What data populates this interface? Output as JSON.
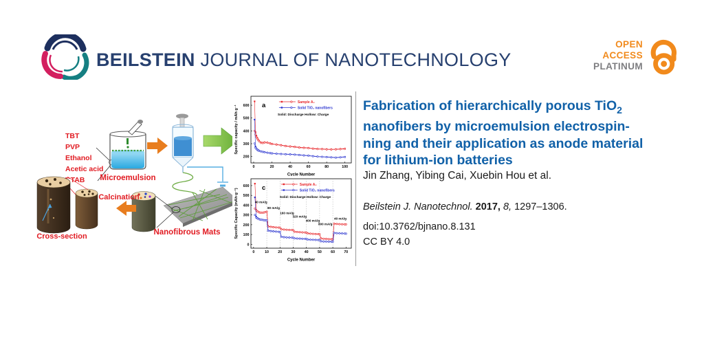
{
  "header": {
    "brand_bold": "BEILSTEIN",
    "brand_rest": "JOURNAL OF NANOTECHNOLOGY",
    "open_access": {
      "line1": "OPEN",
      "line2": "ACCESS",
      "line3": "PLATINUM"
    }
  },
  "article": {
    "title": {
      "l1": "Fabrication of hierarchically porous TiO",
      "l1sub": "2",
      "l2": "nanofibers by microemulsion electrospin-",
      "l3": "ning and their application as anode material",
      "l4": "for lithium-ion batteries"
    },
    "authors": "Jin Zhang, Yibing Cai, Xuebin Hou et al.",
    "citation": {
      "journal": "Beilstein J. Nanotechnol.",
      "year": "2017,",
      "volume": "8,",
      "pages": "1297–1306."
    },
    "doi": "doi:10.3762/bjnano.8.131",
    "license": "CC BY 4.0"
  },
  "figure": {
    "reagents": [
      "TBT",
      "PVP",
      "Ethanol",
      "Acetic acid",
      "CTAB"
    ],
    "labels": {
      "microemulsion": "Microemulsion",
      "calcination": "Calcination",
      "cross_section": "Cross-section",
      "nanofibrous_mats": "Nanofibrous Mats"
    }
  },
  "colors": {
    "title_blue": "#1161a8",
    "brand_navy": "#27406f",
    "open_access_orange": "#f18a1c",
    "platinum_gray": "#7d7d80",
    "figure_red": "#e11b22",
    "arrow_orange": "#e87d1e",
    "arrow_green": "#7fc241",
    "series_red": "#e8262a",
    "series_blue": "#2b35cf"
  },
  "chart_data": [
    {
      "type": "line",
      "panel": "a",
      "xlabel": "Cycle Number",
      "ylabel": "Specific capacity / mAh g⁻¹",
      "xlim": [
        -3,
        107
      ],
      "ylim": [
        150,
        670
      ],
      "xticks": [
        0,
        20,
        40,
        60,
        80,
        100
      ],
      "yticks": [
        200,
        300,
        400,
        500,
        600
      ],
      "legend": [
        "Sample A₂",
        "Solid TiO₂ nanofibers"
      ],
      "legend_note": "Solid: Discharge   Hollow: Charge",
      "legend_x": 0.28,
      "series": [
        {
          "name": "Sample A₂ discharge",
          "color": "#e8262a",
          "marker": "solid",
          "x": [
            1,
            2,
            3,
            4,
            5,
            6,
            8,
            10,
            12,
            15,
            18,
            20,
            25,
            30,
            35,
            40,
            45,
            50,
            55,
            60,
            65,
            70,
            75,
            80,
            85,
            90,
            95,
            100
          ],
          "y": [
            630,
            390,
            362,
            345,
            332,
            322,
            310,
            308,
            312,
            310,
            304,
            300,
            295,
            290,
            284,
            280,
            277,
            272,
            270,
            268,
            263,
            261,
            260,
            258,
            257,
            258,
            260,
            262
          ]
        },
        {
          "name": "Sample A₂ charge",
          "color": "#e8262a",
          "marker": "hollow",
          "x": [
            1,
            2,
            3,
            4,
            5,
            6,
            8,
            10,
            12,
            15,
            18,
            20,
            25,
            30,
            35,
            40,
            45,
            50,
            55,
            60,
            65,
            70,
            75,
            80,
            85,
            90,
            95,
            100
          ],
          "y": [
            400,
            372,
            352,
            338,
            328,
            318,
            306,
            305,
            309,
            307,
            301,
            297,
            292,
            287,
            281,
            277,
            274,
            269,
            267,
            265,
            260,
            258,
            257,
            255,
            254,
            255,
            257,
            259
          ]
        },
        {
          "name": "Solid TiO₂ nanofibers discharge",
          "color": "#2b35cf",
          "marker": "solid",
          "x": [
            1,
            2,
            3,
            4,
            5,
            6,
            8,
            10,
            12,
            15,
            18,
            20,
            25,
            30,
            35,
            40,
            45,
            50,
            55,
            60,
            65,
            70,
            75,
            80,
            85,
            90,
            95,
            100
          ],
          "y": [
            488,
            278,
            264,
            256,
            250,
            246,
            241,
            238,
            235,
            231,
            228,
            226,
            223,
            221,
            219,
            218,
            216,
            213,
            210,
            208,
            204,
            201,
            199,
            197,
            195,
            193,
            195,
            198
          ]
        },
        {
          "name": "Solid TiO₂ nanofibers charge",
          "color": "#2b35cf",
          "marker": "hollow",
          "x": [
            1,
            2,
            3,
            4,
            5,
            6,
            8,
            10,
            12,
            15,
            18,
            20,
            25,
            30,
            35,
            40,
            45,
            50,
            55,
            60,
            65,
            70,
            75,
            80,
            85,
            90,
            95,
            100
          ],
          "y": [
            302,
            268,
            258,
            252,
            247,
            243,
            239,
            236,
            233,
            229,
            226,
            224,
            221,
            219,
            217,
            216,
            214,
            211,
            208,
            206,
            202,
            199,
            197,
            195,
            193,
            191,
            193,
            196
          ]
        }
      ]
    },
    {
      "type": "line",
      "panel": "c",
      "xlabel": "Cycle Number",
      "ylabel": "Specific Capacity (mAh·g⁻¹)",
      "xlim": [
        -2,
        74
      ],
      "ylim": [
        -40,
        670
      ],
      "xticks": [
        0,
        10,
        20,
        30,
        40,
        50,
        60,
        70
      ],
      "yticks": [
        0,
        100,
        200,
        300,
        400,
        500,
        600
      ],
      "vlines": [
        10,
        20,
        30,
        40,
        50,
        60
      ],
      "legend": [
        "Sample A₂",
        "Solid TiO₂ nanofibers"
      ],
      "legend_note": "Solid: Discharge   Hollow: Charge",
      "legend_x": 0.3,
      "annotations": [
        {
          "text": "40 mA/g",
          "x": 1,
          "y": 420
        },
        {
          "text": "80 mA/g",
          "x": 10.5,
          "y": 362
        },
        {
          "text": "160 mA/g",
          "x": 20,
          "y": 308
        },
        {
          "text": "320 mA/g",
          "x": 29.5,
          "y": 272
        },
        {
          "text": "400 mA/g",
          "x": 39.5,
          "y": 232
        },
        {
          "text": "800 mA/g",
          "x": 49,
          "y": 196
        },
        {
          "text": "40 mA/g",
          "x": 61,
          "y": 250
        }
      ],
      "series": [
        {
          "name": "Sample A₂ discharge",
          "color": "#e8262a",
          "marker": "solid",
          "x": [
            1,
            2,
            3,
            4,
            5,
            6,
            7,
            8,
            9,
            10,
            11,
            13,
            15,
            17,
            19,
            20,
            21,
            23,
            25,
            27,
            29,
            30,
            31,
            33,
            35,
            37,
            39,
            40,
            41,
            43,
            45,
            47,
            49,
            50,
            51,
            53,
            55,
            57,
            59,
            60,
            61,
            63,
            65,
            67,
            69,
            70
          ],
          "y": [
            620,
            352,
            338,
            330,
            326,
            324,
            325,
            327,
            330,
            334,
            185,
            180,
            177,
            174,
            172,
            171,
            155,
            152,
            150,
            148,
            147,
            146,
            130,
            127,
            125,
            123,
            122,
            121,
            113,
            110,
            108,
            106,
            105,
            104,
            62,
            58,
            56,
            54,
            53,
            52,
            212,
            209,
            207,
            206,
            205,
            205
          ]
        },
        {
          "name": "Sample A₂ charge",
          "color": "#e8262a",
          "marker": "hollow",
          "x": [
            1,
            2,
            3,
            4,
            5,
            6,
            7,
            8,
            9,
            10,
            11,
            13,
            15,
            17,
            19,
            20,
            21,
            23,
            25,
            27,
            29,
            30,
            31,
            33,
            35,
            37,
            39,
            40,
            41,
            43,
            45,
            47,
            49,
            50,
            51,
            53,
            55,
            57,
            59,
            60,
            61,
            63,
            65,
            67,
            69,
            70
          ],
          "y": [
            365,
            345,
            334,
            327,
            323,
            322,
            323,
            325,
            328,
            332,
            181,
            177,
            174,
            172,
            170,
            169,
            152,
            150,
            148,
            146,
            145,
            144,
            127,
            125,
            123,
            121,
            120,
            119,
            110,
            108,
            106,
            104,
            103,
            102,
            59,
            56,
            54,
            52,
            51,
            50,
            209,
            207,
            205,
            204,
            203,
            203
          ]
        },
        {
          "name": "Solid TiO₂ nanofibers discharge",
          "color": "#2b35cf",
          "marker": "solid",
          "x": [
            1,
            2,
            3,
            4,
            5,
            6,
            7,
            8,
            9,
            10,
            11,
            13,
            15,
            17,
            19,
            20,
            21,
            23,
            25,
            27,
            29,
            30,
            31,
            33,
            35,
            37,
            39,
            40,
            41,
            43,
            45,
            47,
            49,
            50,
            51,
            53,
            55,
            57,
            59,
            60,
            61,
            63,
            65,
            67,
            69,
            70
          ],
          "y": [
            480,
            282,
            268,
            260,
            255,
            252,
            250,
            248,
            247,
            246,
            142,
            137,
            134,
            131,
            129,
            128,
            78,
            74,
            72,
            70,
            69,
            68,
            62,
            60,
            59,
            58,
            57,
            57,
            50,
            48,
            47,
            46,
            45,
            45,
            32,
            30,
            29,
            28,
            28,
            27,
            118,
            115,
            113,
            112,
            111,
            110
          ]
        },
        {
          "name": "Solid TiO₂ nanofibers charge",
          "color": "#2b35cf",
          "marker": "hollow",
          "x": [
            1,
            2,
            3,
            4,
            5,
            6,
            7,
            8,
            9,
            10,
            11,
            13,
            15,
            17,
            19,
            20,
            21,
            23,
            25,
            27,
            29,
            30,
            31,
            33,
            35,
            37,
            39,
            40,
            41,
            43,
            45,
            47,
            49,
            50,
            51,
            53,
            55,
            57,
            59,
            60,
            61,
            63,
            65,
            67,
            69,
            70
          ],
          "y": [
            300,
            272,
            262,
            256,
            252,
            250,
            248,
            246,
            245,
            244,
            138,
            134,
            131,
            129,
            127,
            126,
            75,
            72,
            70,
            68,
            67,
            66,
            60,
            58,
            57,
            56,
            55,
            55,
            48,
            46,
            45,
            44,
            43,
            43,
            30,
            28,
            27,
            26,
            26,
            25,
            115,
            113,
            111,
            110,
            109,
            108
          ]
        }
      ]
    }
  ]
}
